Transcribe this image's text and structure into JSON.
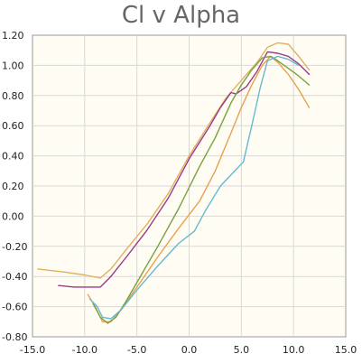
{
  "chart_data": {
    "type": "line",
    "title": "Cl v Alpha",
    "xlabel": "",
    "ylabel": "",
    "xlim": [
      -15,
      15
    ],
    "ylim": [
      -0.8,
      1.2
    ],
    "x_ticks": [
      "-15.0",
      "-10.0",
      "-5.0",
      "0.0",
      "5.0",
      "10.0",
      "15.0"
    ],
    "x_tick_values": [
      -15,
      -10,
      -5,
      0,
      5,
      10,
      15
    ],
    "y_ticks": [
      "-0.80",
      "-0.60",
      "-0.40",
      "-0.20",
      "0.00",
      "0.20",
      "0.40",
      "0.60",
      "0.80",
      "1.00",
      "1.20"
    ],
    "y_tick_values": [
      -0.8,
      -0.6,
      -0.4,
      -0.2,
      0.0,
      0.2,
      0.4,
      0.6,
      0.8,
      1.0,
      1.2
    ],
    "grid": true,
    "series": [
      {
        "color": "#e0b060",
        "points": [
          [
            -14.5,
            -0.35
          ],
          [
            -12,
            -0.37
          ],
          [
            -10,
            -0.39
          ],
          [
            -8.5,
            -0.41
          ],
          [
            -7.5,
            -0.35
          ],
          [
            -6,
            -0.22
          ],
          [
            -4,
            -0.05
          ],
          [
            -2,
            0.15
          ],
          [
            0,
            0.4
          ],
          [
            2,
            0.62
          ],
          [
            3.5,
            0.78
          ],
          [
            5,
            0.9
          ],
          [
            6.5,
            1.02
          ],
          [
            7.5,
            1.12
          ],
          [
            8.5,
            1.15
          ],
          [
            9.5,
            1.14
          ],
          [
            10.5,
            1.06
          ],
          [
            11.5,
            0.97
          ]
        ]
      },
      {
        "color": "#9a3a8a",
        "points": [
          [
            -12.5,
            -0.46
          ],
          [
            -11,
            -0.47
          ],
          [
            -9.5,
            -0.47
          ],
          [
            -8.5,
            -0.47
          ],
          [
            -7.5,
            -0.4
          ],
          [
            -6,
            -0.27
          ],
          [
            -4,
            -0.09
          ],
          [
            -2,
            0.12
          ],
          [
            0,
            0.38
          ],
          [
            2,
            0.6
          ],
          [
            3,
            0.72
          ],
          [
            4,
            0.82
          ],
          [
            4.5,
            0.81
          ],
          [
            5.5,
            0.86
          ],
          [
            6.5,
            0.96
          ],
          [
            7.5,
            1.09
          ],
          [
            8.5,
            1.08
          ],
          [
            9.5,
            1.06
          ],
          [
            10.5,
            1.01
          ],
          [
            11.5,
            0.94
          ]
        ]
      },
      {
        "color": "#e8a050",
        "points": [
          [
            -9.7,
            -0.52
          ],
          [
            -9,
            -0.6
          ],
          [
            -8.3,
            -0.7
          ],
          [
            -7.5,
            -0.7
          ],
          [
            -6.5,
            -0.62
          ],
          [
            -5,
            -0.47
          ],
          [
            -3,
            -0.27
          ],
          [
            -1,
            -0.08
          ],
          [
            1,
            0.1
          ],
          [
            2.5,
            0.3
          ],
          [
            4,
            0.55
          ],
          [
            5,
            0.72
          ],
          [
            6,
            0.87
          ],
          [
            7,
            1.0
          ],
          [
            7.8,
            1.06
          ],
          [
            8.5,
            1.02
          ],
          [
            9.5,
            0.94
          ],
          [
            10.5,
            0.84
          ],
          [
            11.5,
            0.72
          ]
        ]
      },
      {
        "color": "#78a040",
        "points": [
          [
            -9.2,
            -0.58
          ],
          [
            -8.5,
            -0.67
          ],
          [
            -7.8,
            -0.71
          ],
          [
            -7,
            -0.67
          ],
          [
            -6,
            -0.56
          ],
          [
            -4.5,
            -0.38
          ],
          [
            -3,
            -0.2
          ],
          [
            -1,
            0.05
          ],
          [
            1,
            0.33
          ],
          [
            2.5,
            0.52
          ],
          [
            4,
            0.75
          ],
          [
            5,
            0.87
          ],
          [
            6,
            0.97
          ],
          [
            7,
            1.05
          ],
          [
            7.8,
            1.06
          ],
          [
            8.5,
            1.03
          ],
          [
            9.5,
            0.98
          ],
          [
            10.5,
            0.93
          ],
          [
            11.5,
            0.87
          ]
        ]
      },
      {
        "color": "#68b8d0",
        "points": [
          [
            -9.5,
            -0.55
          ],
          [
            -8.8,
            -0.6
          ],
          [
            -8.3,
            -0.67
          ],
          [
            -7.5,
            -0.68
          ],
          [
            -6.5,
            -0.62
          ],
          [
            -5,
            -0.49
          ],
          [
            -3,
            -0.33
          ],
          [
            -1,
            -0.18
          ],
          [
            0.5,
            -0.1
          ],
          [
            1.5,
            0.03
          ],
          [
            3,
            0.2
          ],
          [
            4.5,
            0.31
          ],
          [
            5.2,
            0.36
          ],
          [
            6,
            0.6
          ],
          [
            6.8,
            0.85
          ],
          [
            7.5,
            1.03
          ],
          [
            8.5,
            1.06
          ],
          [
            9.5,
            1.04
          ],
          [
            10.5,
            1.0
          ]
        ]
      }
    ]
  }
}
